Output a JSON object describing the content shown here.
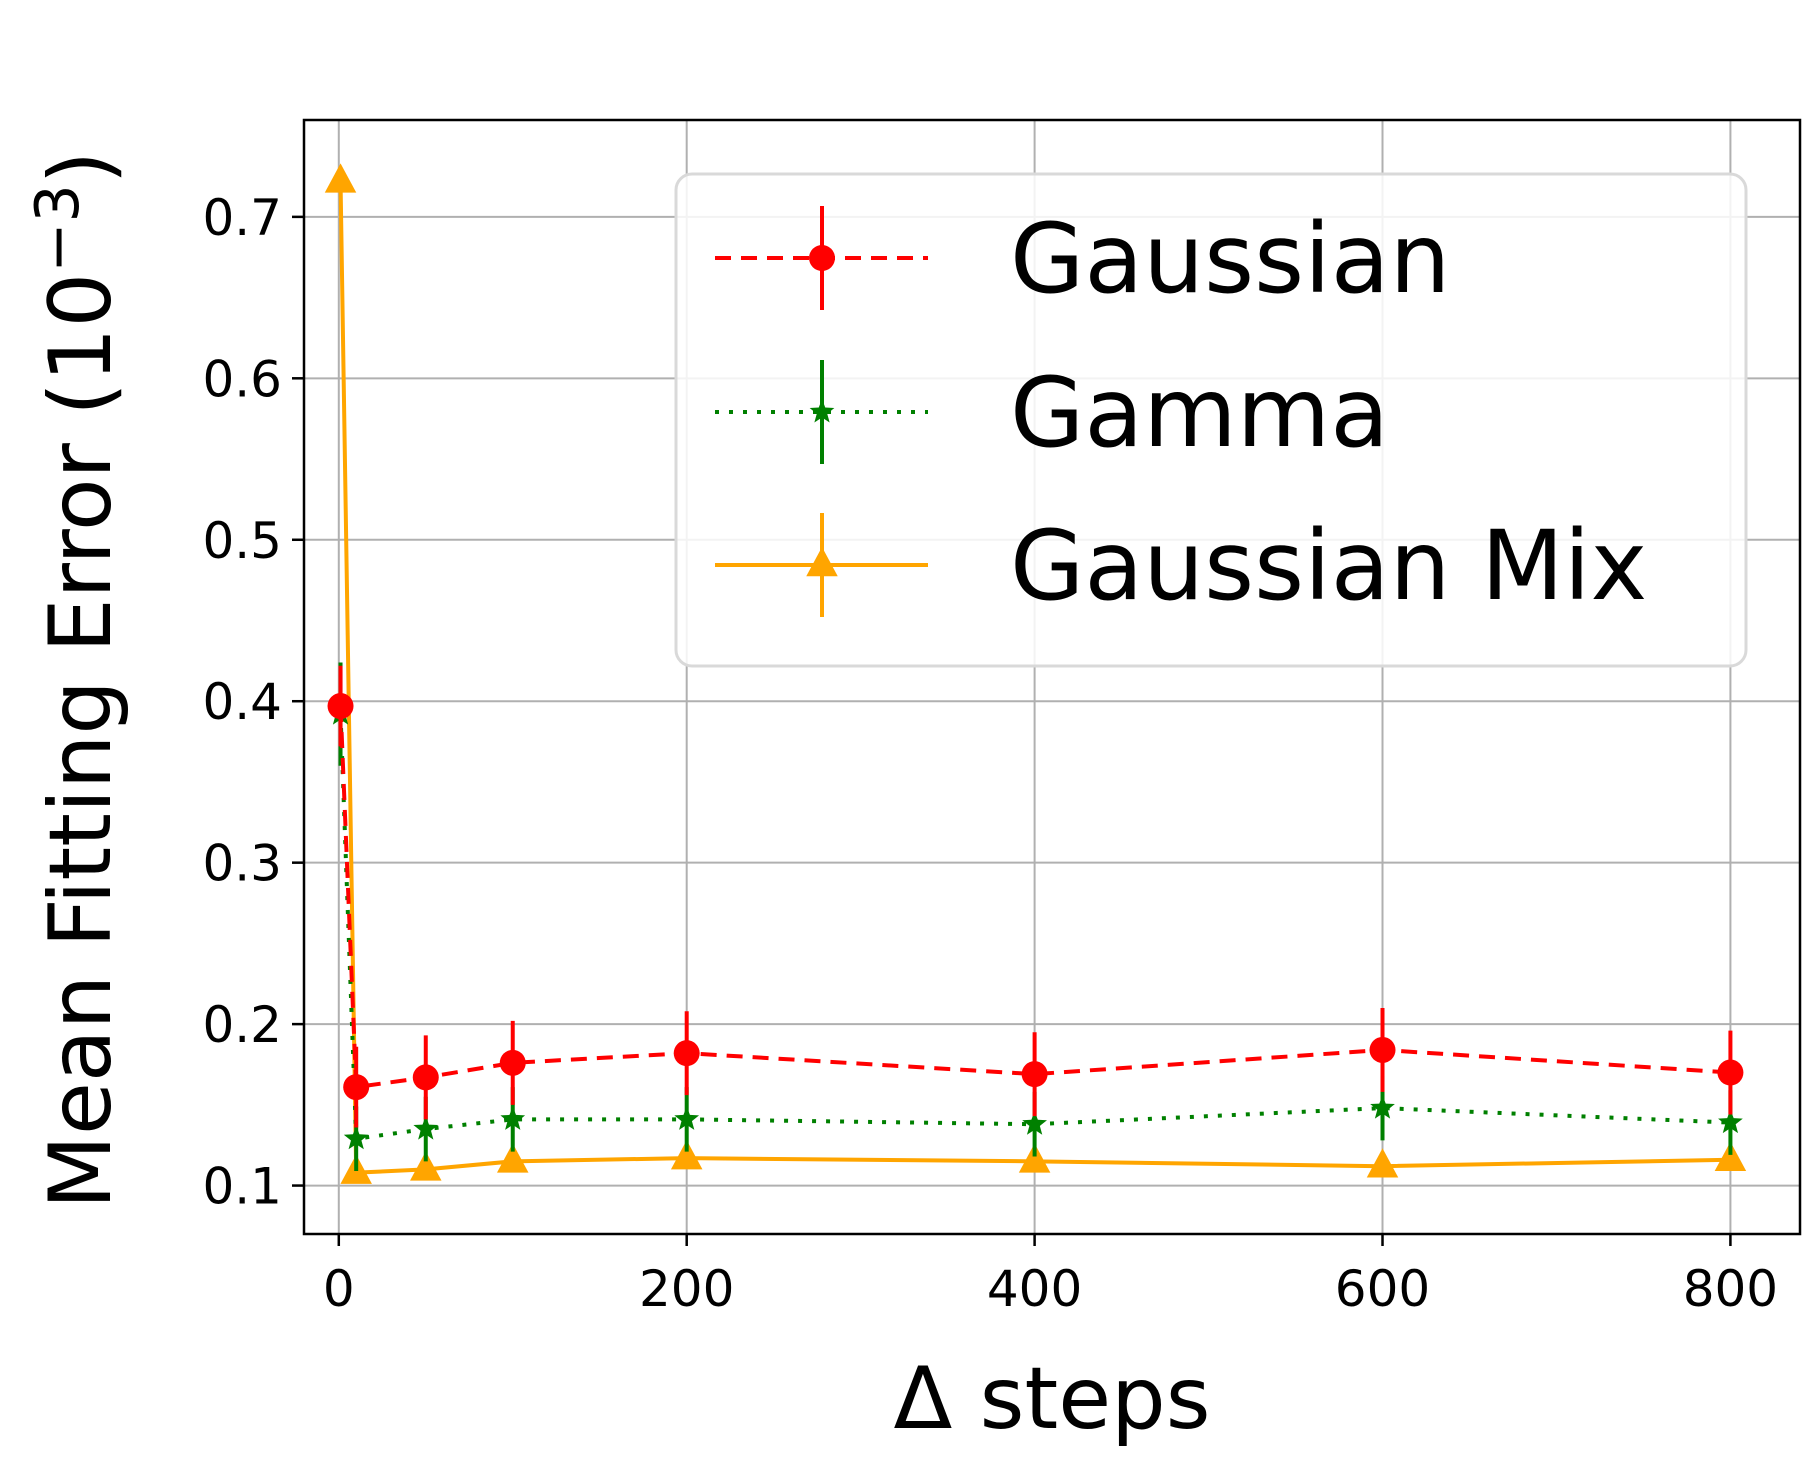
{
  "chart_data": {
    "type": "line",
    "xlabel": "Δ steps",
    "ylabel": "Mean Fitting Error (10",
    "ylabel_exponent": "−3",
    "ylabel_close": ")",
    "xlim": [
      -20,
      840
    ],
    "ylim": [
      0.07,
      0.76
    ],
    "xticks": [
      0,
      200,
      400,
      600,
      800
    ],
    "yticks": [
      0.1,
      0.2,
      0.3,
      0.4,
      0.5,
      0.6,
      0.7
    ],
    "xtick_labels": [
      "0",
      "200",
      "400",
      "600",
      "800"
    ],
    "ytick_labels": [
      "0.1",
      "0.2",
      "0.3",
      "0.4",
      "0.5",
      "0.6",
      "0.7"
    ],
    "grid": true,
    "legend_position": "top-right",
    "x": [
      1,
      10,
      50,
      100,
      200,
      400,
      600,
      800
    ],
    "series": [
      {
        "name": "Gaussian",
        "values": [
          0.397,
          0.161,
          0.167,
          0.176,
          0.182,
          0.169,
          0.184,
          0.17
        ],
        "errors": [
          0.025,
          0.025,
          0.026,
          0.026,
          0.026,
          0.026,
          0.026,
          0.026
        ],
        "color": "#ff0000",
        "line_style": "dashed",
        "marker": "circle"
      },
      {
        "name": "Gamma",
        "values": [
          0.392,
          0.129,
          0.135,
          0.141,
          0.141,
          0.138,
          0.148,
          0.139
        ],
        "errors": [
          0.032,
          0.02,
          0.02,
          0.02,
          0.02,
          0.02,
          0.02,
          0.02
        ],
        "color": "#008000",
        "line_style": "dotted",
        "marker": "star"
      },
      {
        "name": "Gaussian Mix",
        "values": [
          0.722,
          0.108,
          0.11,
          0.115,
          0.117,
          0.115,
          0.112,
          0.116
        ],
        "errors": [
          0.0,
          0.0,
          0.0,
          0.0,
          0.0,
          0.0,
          0.0,
          0.0
        ],
        "color": "#ffa500",
        "line_style": "solid",
        "marker": "triangle"
      }
    ]
  }
}
